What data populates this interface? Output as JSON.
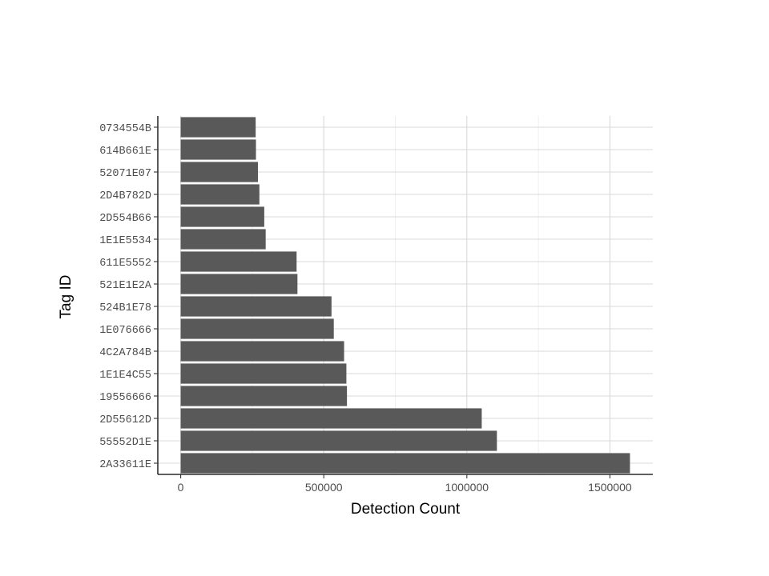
{
  "chart_data": {
    "type": "bar",
    "orientation": "horizontal",
    "title": "",
    "xlabel": "Detection Count",
    "ylabel": "Tag ID",
    "xlim": [
      -80000,
      1650000
    ],
    "xticks": [
      0,
      500000,
      1000000,
      1500000
    ],
    "xtick_labels": [
      "0",
      "500000",
      "1000000",
      "1500000"
    ],
    "grid": true,
    "bar_color": "#595959",
    "grid_color": "#d9d9d9",
    "categories": [
      "2A33611E",
      "55552D1E",
      "2D55612D",
      "19556666",
      "1E1E4C55",
      "4C2A784B",
      "1E076666",
      "524B1E78",
      "521E1E2A",
      "611E5552",
      "1E1E5534",
      "2D554B66",
      "2D4B782D",
      "52071E07",
      "614B661E",
      "0734554B"
    ],
    "values": [
      1570000,
      1105000,
      1052000,
      581000,
      579000,
      571000,
      535000,
      527000,
      408000,
      405000,
      297000,
      292000,
      275000,
      270000,
      263000,
      262000
    ]
  }
}
